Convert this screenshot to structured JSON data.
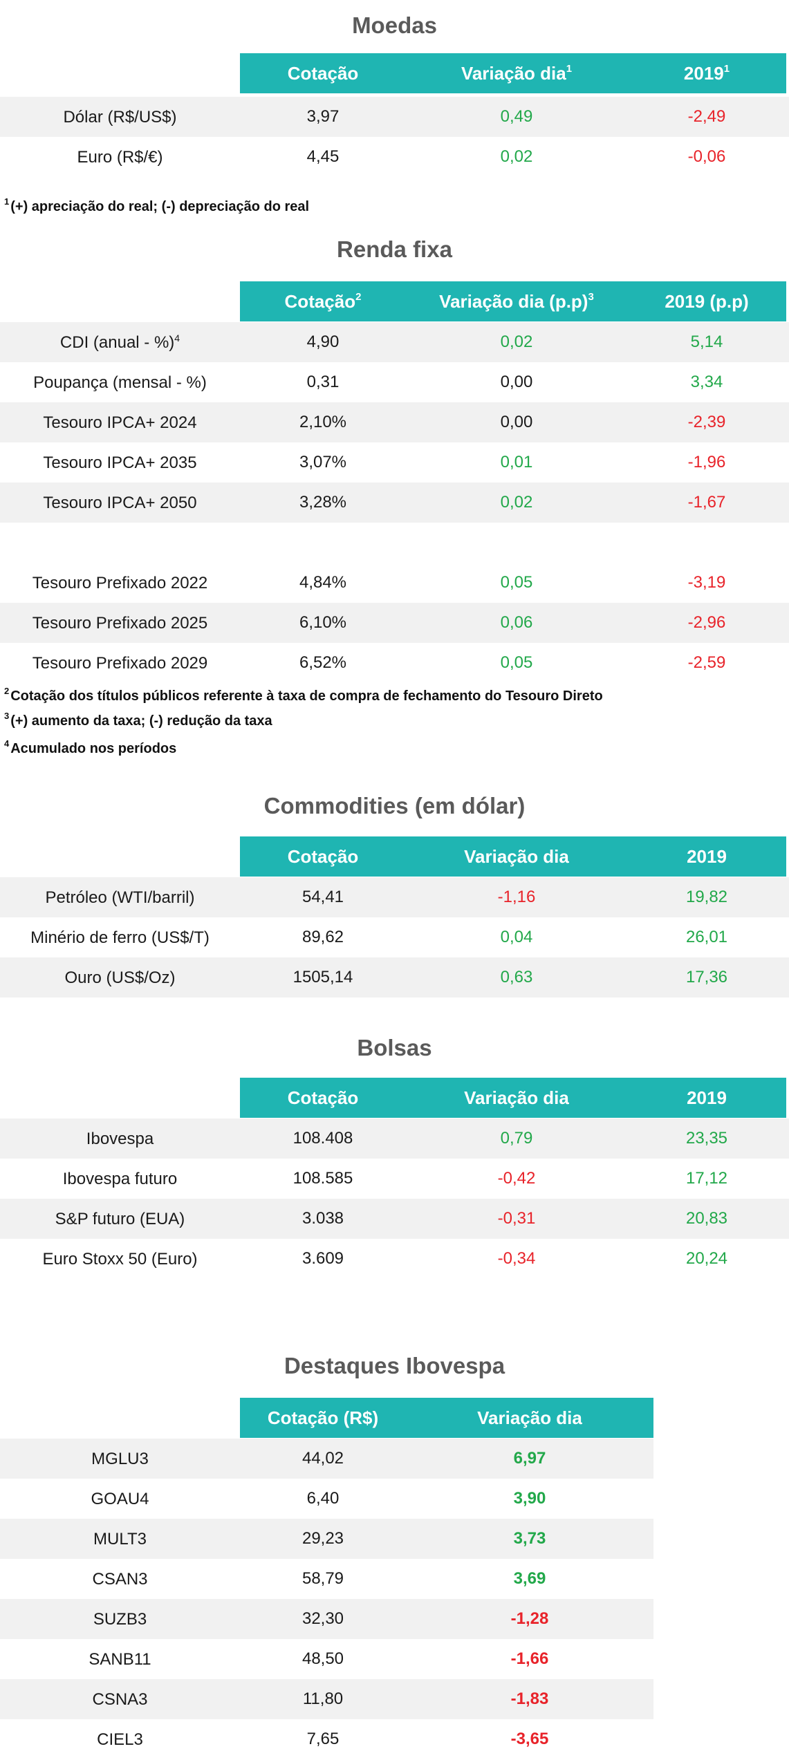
{
  "moedas": {
    "title": "Moedas",
    "headers": [
      "Cotação",
      "Variação dia",
      "2019"
    ],
    "header_sups": [
      "",
      "1",
      "1"
    ],
    "rows": [
      {
        "label": "Dólar (R$/US$)",
        "cot": "3,97",
        "var": "0,49",
        "ano": "-2,49",
        "var_c": "pos",
        "ano_c": "neg"
      },
      {
        "label": "Euro (R$/€)",
        "cot": "4,45",
        "var": "0,02",
        "ano": "-0,06",
        "var_c": "pos",
        "ano_c": "neg"
      }
    ],
    "note_sup": "1",
    "note": "(+) apreciação do real; (-) depreciação do real"
  },
  "renda": {
    "title": "Renda fixa",
    "headers": [
      "Cotação",
      "Variação dia (p.p)",
      "2019 (p.p)"
    ],
    "header_sups": [
      "2",
      "3",
      ""
    ],
    "rows": [
      {
        "label": "CDI (anual - %)",
        "sup": "4",
        "cot": "4,90",
        "var": "0,02",
        "ano": "5,14",
        "var_c": "pos",
        "ano_c": "pos"
      },
      {
        "label": "Poupança (mensal - %)",
        "cot": "0,31",
        "var": "0,00",
        "ano": "3,34",
        "var_c": "neu",
        "ano_c": "pos"
      },
      {
        "label": "Tesouro IPCA+ 2024",
        "cot": "2,10%",
        "var": "0,00",
        "ano": "-2,39",
        "var_c": "neu",
        "ano_c": "neg"
      },
      {
        "label": "Tesouro IPCA+ 2035",
        "cot": "3,07%",
        "var": "0,01",
        "ano": "-1,96",
        "var_c": "pos",
        "ano_c": "neg"
      },
      {
        "label": "Tesouro IPCA+ 2050",
        "cot": "3,28%",
        "var": "0,02",
        "ano": "-1,67",
        "var_c": "pos",
        "ano_c": "neg"
      },
      {
        "label": "Tesouro Prefixado 2022",
        "cot": "4,84%",
        "var": "0,05",
        "ano": "-3,19",
        "var_c": "pos",
        "ano_c": "neg"
      },
      {
        "label": "Tesouro Prefixado 2025",
        "cot": "6,10%",
        "var": "0,06",
        "ano": "-2,96",
        "var_c": "pos",
        "ano_c": "neg"
      },
      {
        "label": "Tesouro Prefixado 2029",
        "cot": "6,52%",
        "var": "0,05",
        "ano": "-2,59",
        "var_c": "pos",
        "ano_c": "neg"
      }
    ],
    "notes": [
      {
        "sup": "2",
        "text": "Cotação dos títulos públicos referente à taxa de compra de fechamento do Tesouro Direto"
      },
      {
        "sup": "3",
        "text": "(+) aumento da taxa; (-) redução da taxa"
      },
      {
        "sup": "4",
        "text": "Acumulado nos períodos"
      }
    ]
  },
  "commodities": {
    "title": "Commodities (em dólar)",
    "headers": [
      "Cotação",
      "Variação dia",
      "2019"
    ],
    "rows": [
      {
        "label": "Petróleo (WTI/barril)",
        "cot": "54,41",
        "var": "-1,16",
        "ano": "19,82",
        "var_c": "neg",
        "ano_c": "pos"
      },
      {
        "label": "Minério de ferro (US$/T)",
        "cot": "89,62",
        "var": "0,04",
        "ano": "26,01",
        "var_c": "pos",
        "ano_c": "pos"
      },
      {
        "label": "Ouro (US$/Oz)",
        "cot": "1505,14",
        "var": "0,63",
        "ano": "17,36",
        "var_c": "pos",
        "ano_c": "pos"
      }
    ]
  },
  "bolsas": {
    "title": "Bolsas",
    "headers": [
      "Cotação",
      "Variação dia",
      "2019"
    ],
    "rows": [
      {
        "label": "Ibovespa",
        "cot": "108.408",
        "var": "0,79",
        "ano": "23,35",
        "var_c": "pos",
        "ano_c": "pos"
      },
      {
        "label": "Ibovespa futuro",
        "cot": "108.585",
        "var": "-0,42",
        "ano": "17,12",
        "var_c": "neg",
        "ano_c": "pos"
      },
      {
        "label": "S&P futuro (EUA)",
        "cot": "3.038",
        "var": "-0,31",
        "ano": "20,83",
        "var_c": "neg",
        "ano_c": "pos"
      },
      {
        "label": "Euro Stoxx 50 (Euro)",
        "cot": "3.609",
        "var": "-0,34",
        "ano": "20,24",
        "var_c": "neg",
        "ano_c": "pos"
      }
    ]
  },
  "destaques": {
    "title": "Destaques Ibovespa",
    "headers": [
      "Cotação (R$)",
      "Variação dia"
    ],
    "rows": [
      {
        "label": "MGLU3",
        "cot": "44,02",
        "var": "6,97",
        "var_c": "pos"
      },
      {
        "label": "GOAU4",
        "cot": "6,40",
        "var": "3,90",
        "var_c": "pos"
      },
      {
        "label": "MULT3",
        "cot": "29,23",
        "var": "3,73",
        "var_c": "pos"
      },
      {
        "label": "CSAN3",
        "cot": "58,79",
        "var": "3,69",
        "var_c": "pos"
      },
      {
        "label": "SUZB3",
        "cot": "32,30",
        "var": "-1,28",
        "var_c": "neg"
      },
      {
        "label": "SANB11",
        "cot": "48,50",
        "var": "-1,66",
        "var_c": "neg"
      },
      {
        "label": "CSNA3",
        "cot": "11,80",
        "var": "-1,83",
        "var_c": "neg"
      },
      {
        "label": "CIEL3",
        "cot": "7,65",
        "var": "-3,65",
        "var_c": "neg"
      }
    ]
  },
  "colors": {
    "header_bg": "#1fb5b2",
    "positive": "#22a84a",
    "negative": "#e8232a",
    "title": "#5a5a5a",
    "row_shade": "#f1f1f1"
  }
}
